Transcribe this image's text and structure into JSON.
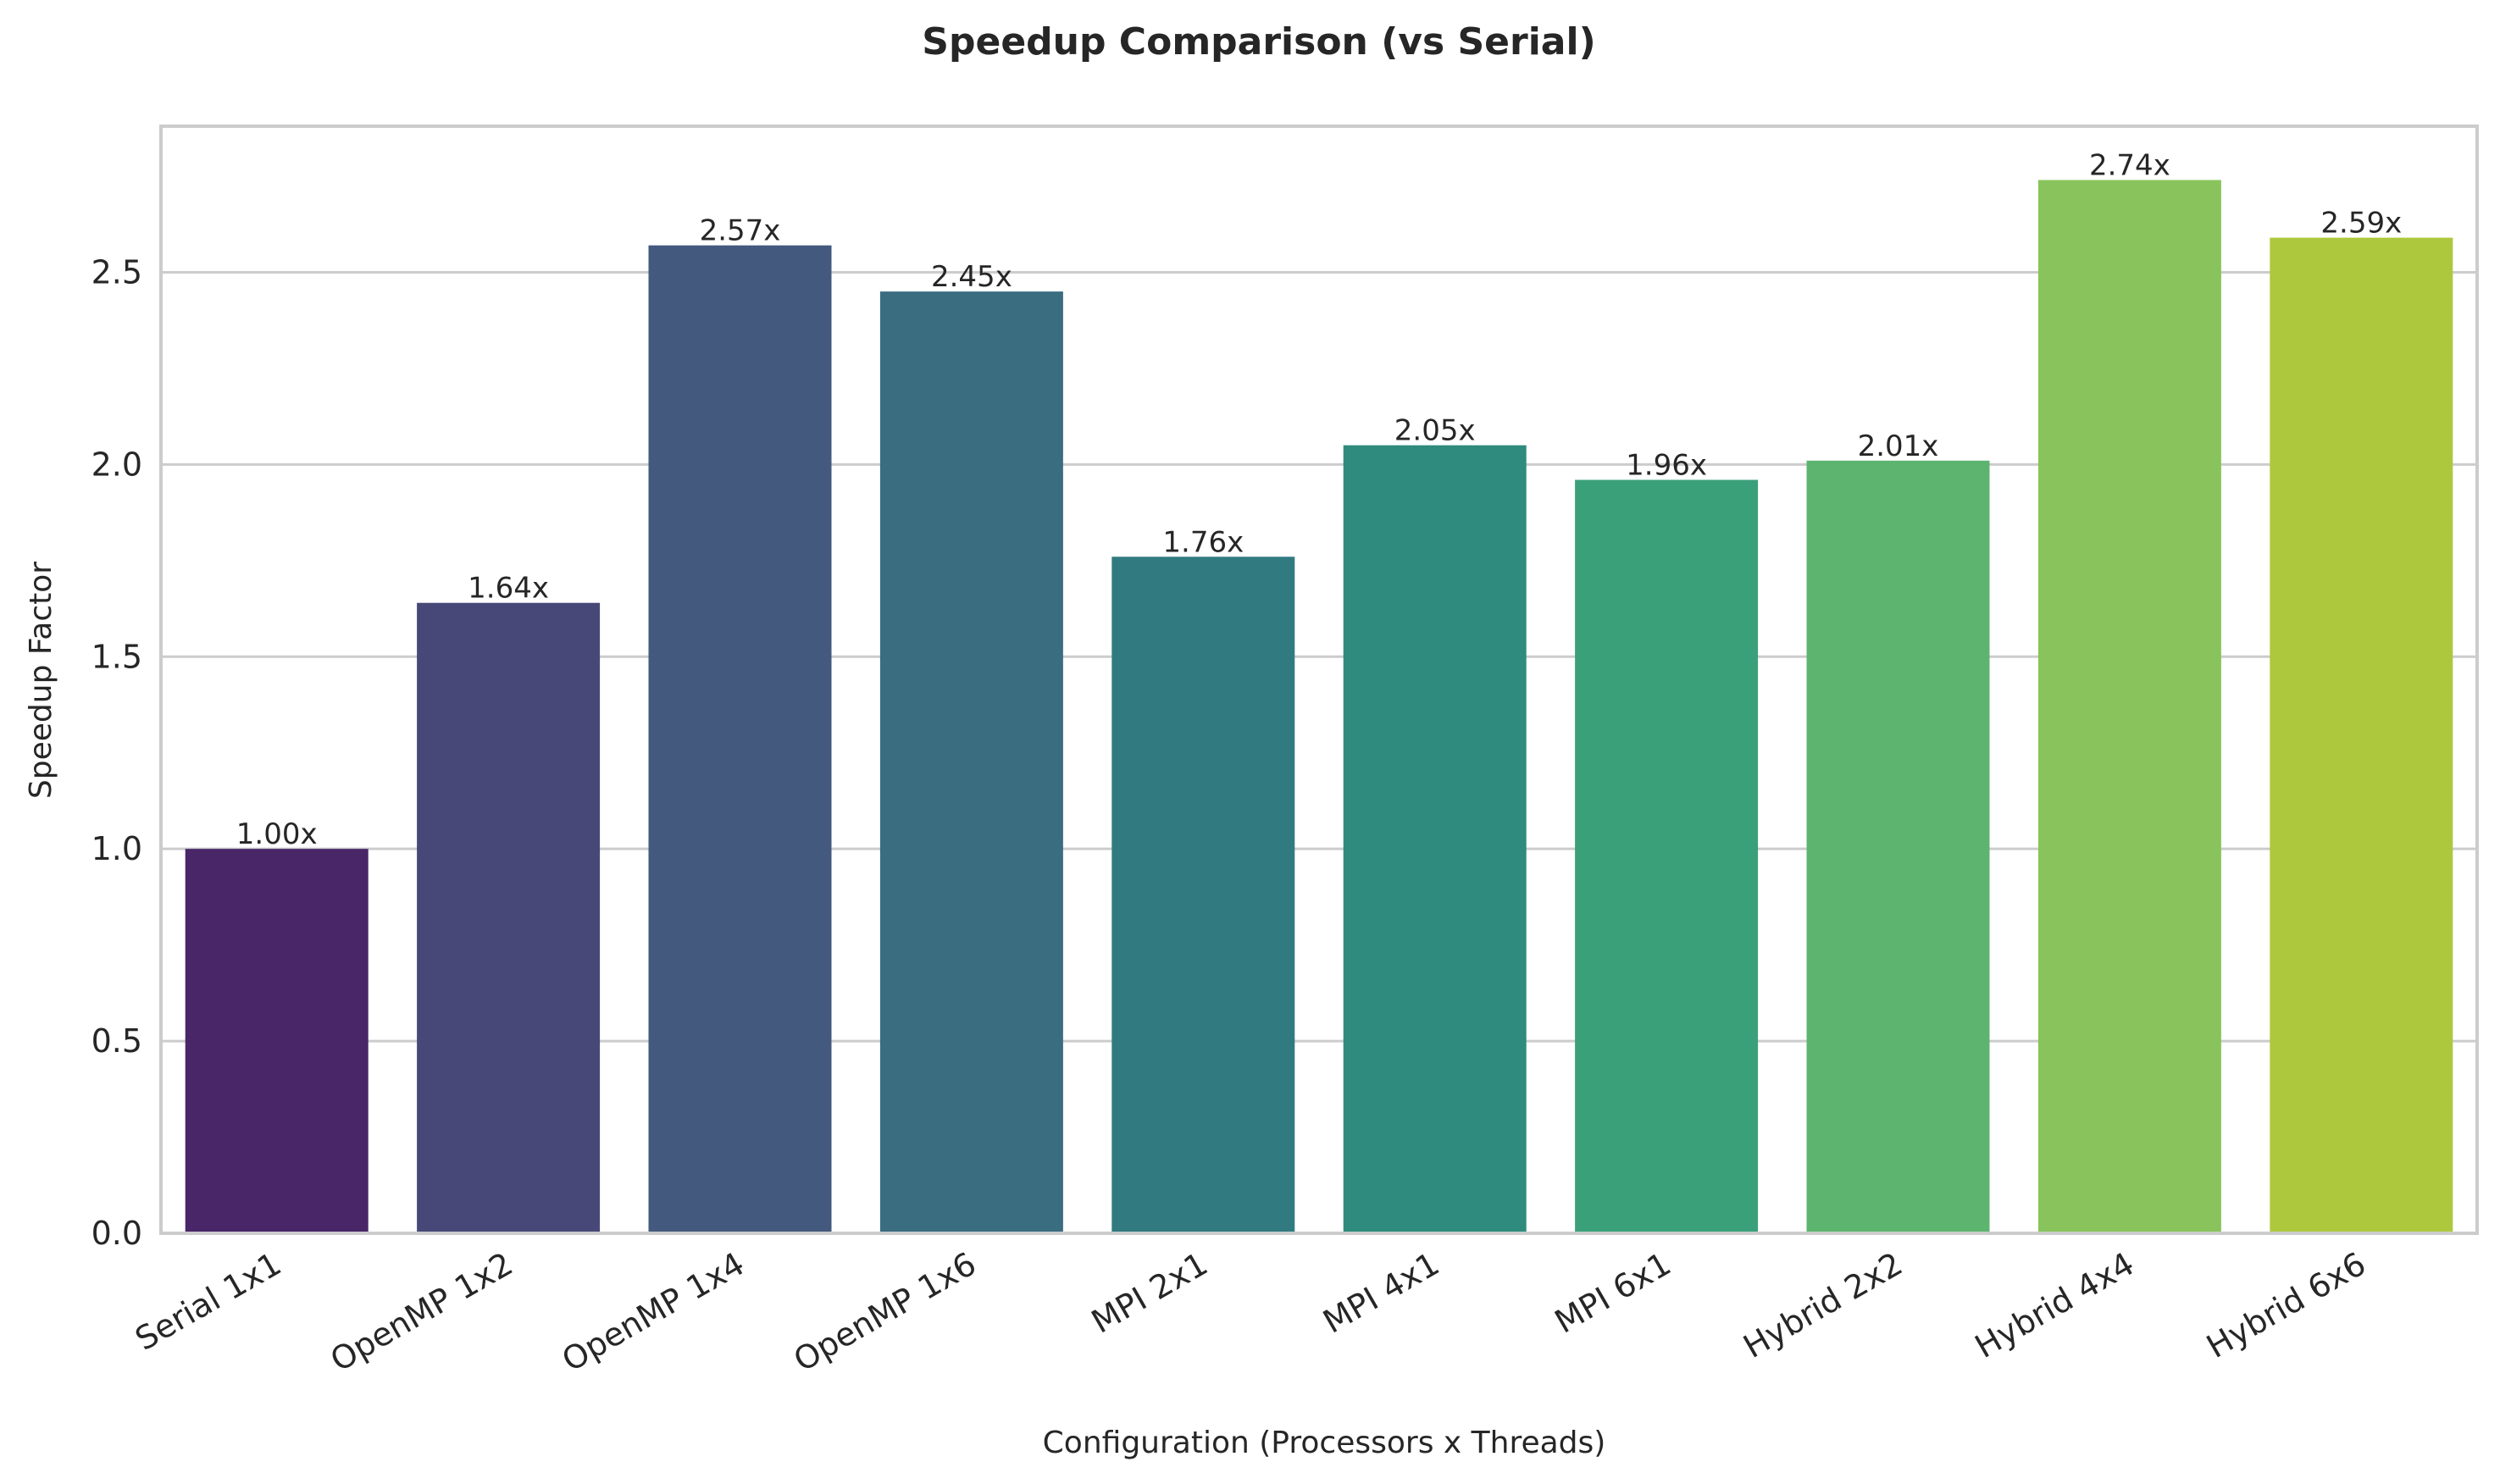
{
  "chart_data": {
    "type": "bar",
    "title": "Speedup Comparison (vs Serial)",
    "xlabel": "Configuration (Processors x Threads)",
    "ylabel": "Speedup Factor",
    "categories": [
      "Serial 1x1",
      "OpenMP 1x2",
      "OpenMP 1x4",
      "OpenMP 1x6",
      "MPI 2x1",
      "MPI 4x1",
      "MPI 6x1",
      "Hybrid 2x2",
      "Hybrid 4x4",
      "Hybrid 6x6"
    ],
    "values": [
      1.0,
      1.64,
      2.57,
      2.45,
      1.76,
      2.05,
      1.96,
      2.01,
      2.74,
      2.59
    ],
    "data_labels": [
      "1.00x",
      "1.64x",
      "2.57x",
      "2.45x",
      "1.76x",
      "2.05x",
      "1.96x",
      "2.01x",
      "2.74x",
      "2.59x"
    ],
    "colors": [
      "#482668",
      "#484878",
      "#43597e",
      "#3a6d80",
      "#317b80",
      "#2e8b7d",
      "#3aa079",
      "#5db46f",
      "#88c45b",
      "#aec83d"
    ],
    "yticks": [
      "0.0",
      "0.5",
      "1.0",
      "1.5",
      "2.0",
      "2.5"
    ],
    "ylim": [
      0,
      2.88
    ],
    "grid": "horizontal",
    "legend": "none"
  }
}
